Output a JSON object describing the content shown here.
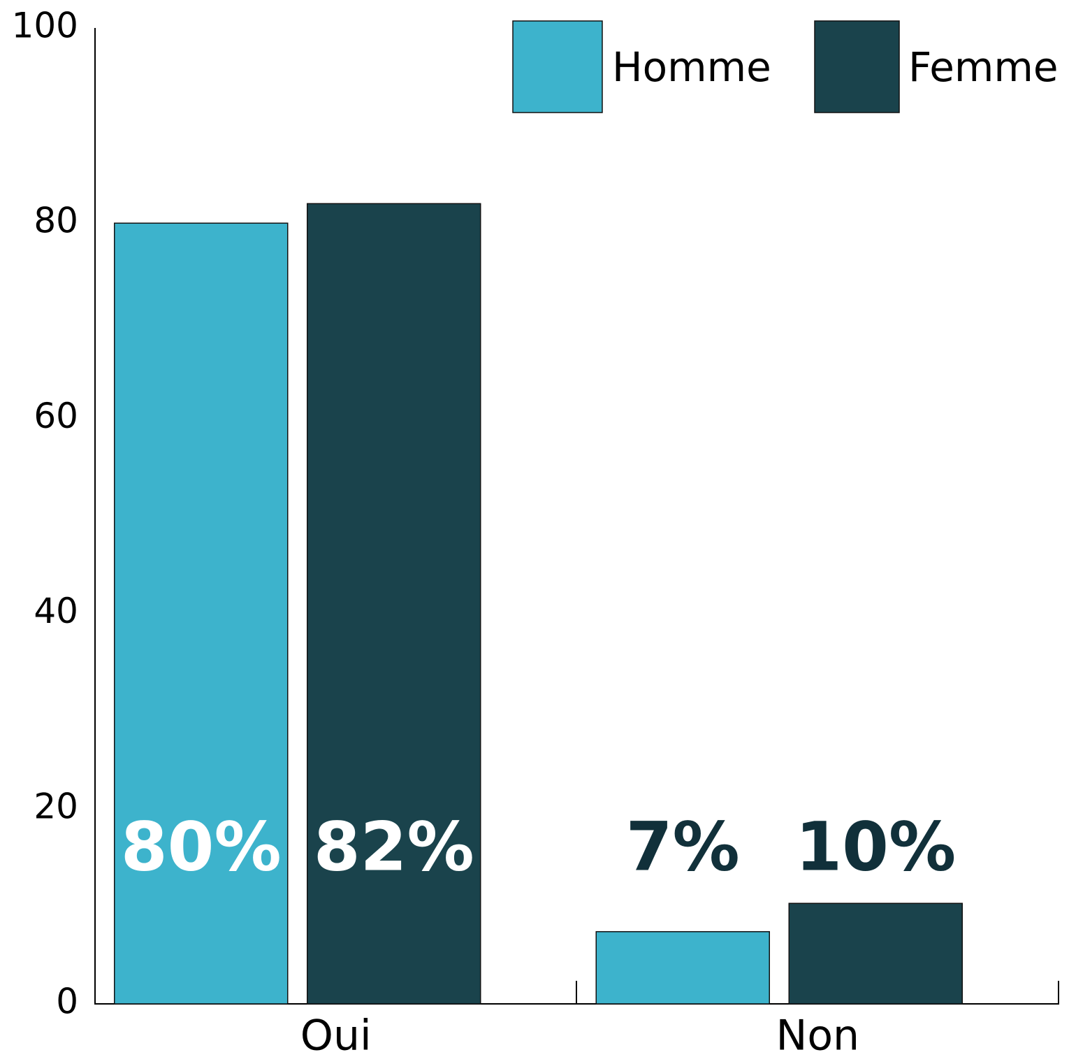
{
  "chart_data": {
    "type": "bar",
    "categories": [
      "Oui",
      "Non"
    ],
    "series": [
      {
        "name": "Homme",
        "color": "#3db3cc",
        "values": [
          80,
          7.4
        ],
        "value_labels": [
          "80%",
          "7%"
        ]
      },
      {
        "name": "Femme",
        "color": "#1a434c",
        "values": [
          82,
          10.3
        ],
        "value_labels": [
          "82%",
          "10%"
        ]
      }
    ],
    "ylim": [
      0,
      100
    ],
    "yticks": [
      0,
      20,
      40,
      60,
      80,
      100
    ],
    "legend": "top-right",
    "grid": false
  }
}
